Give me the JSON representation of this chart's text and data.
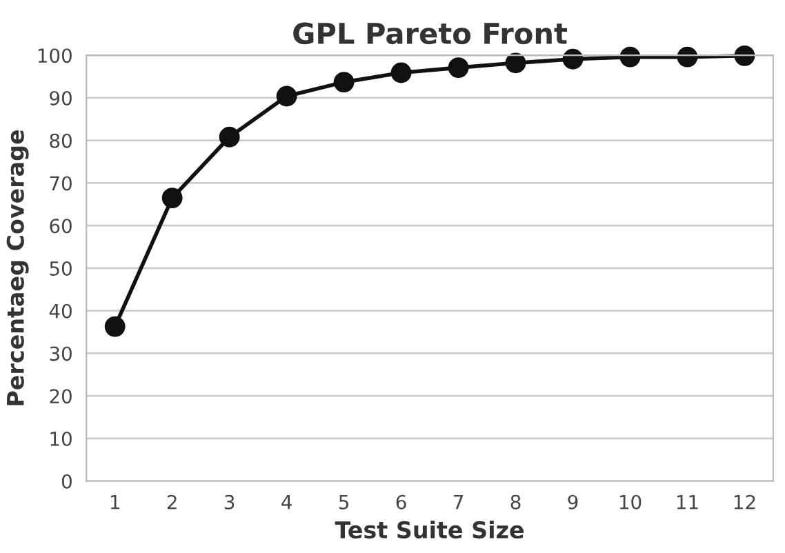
{
  "chart_data": {
    "type": "line",
    "title": "GPL Pareto Front",
    "xlabel": "Test Suite Size",
    "ylabel": "Percentaeg Coverage",
    "categories": [
      "1",
      "2",
      "3",
      "4",
      "5",
      "6",
      "7",
      "8",
      "9",
      "10",
      "11",
      "12"
    ],
    "series": [
      {
        "color": "#111111",
        "values": [
          36.3,
          66.5,
          80.8,
          90.4,
          93.7,
          95.9,
          97.1,
          98.2,
          99.1,
          99.6,
          99.6,
          99.9
        ]
      }
    ],
    "ylim": [
      0,
      100
    ],
    "yticks": [
      0,
      10,
      20,
      30,
      40,
      50,
      60,
      70,
      80,
      90,
      100
    ],
    "grid": "y",
    "marker": "circle",
    "line_style": "solid"
  }
}
